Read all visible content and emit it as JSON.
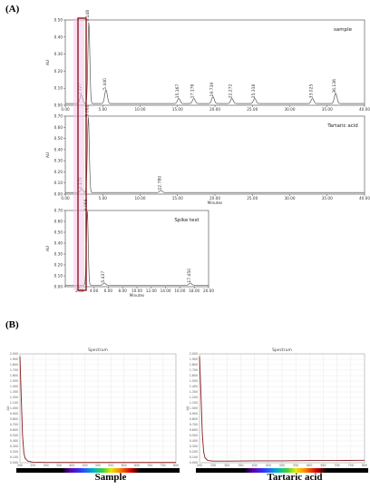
{
  "panel_a_label": "(A)",
  "panel_b_label": "(B)",
  "captions": {
    "left": "Sample",
    "right": "Tartaric acid"
  },
  "spectra_title": "Spectrum",
  "colors": {
    "trace": "#5a5a5a",
    "highlight_box": "#8b1a1a",
    "pink_band": "#f4c6ea",
    "spectrum_line": "#8b1a1a"
  },
  "chart_data": [
    {
      "type": "line",
      "title": "sample",
      "xlabel": "",
      "ylabel": "AU",
      "xlim": [
        0,
        40
      ],
      "ylim": [
        0,
        0.5
      ],
      "x_ticks": [
        "0.00",
        "5.00",
        "10.00",
        "15.00",
        "20.00",
        "25.00",
        "30.00",
        "35.00",
        "40.00"
      ],
      "y_ticks": [
        "0.00",
        "0.10",
        "0.20",
        "0.30",
        "0.40",
        "0.50"
      ],
      "peaks": [
        {
          "label": "2.127",
          "x": 2.13,
          "y": 0.05
        },
        {
          "label": "3.148",
          "x": 3.15,
          "y": 0.48
        },
        {
          "label": "5.440",
          "x": 5.44,
          "y": 0.08
        },
        {
          "label": "15.167",
          "x": 15.17,
          "y": 0.03
        },
        {
          "label": "17.176",
          "x": 17.18,
          "y": 0.03
        },
        {
          "label": "19.739",
          "x": 19.74,
          "y": 0.04
        },
        {
          "label": "22.272",
          "x": 22.27,
          "y": 0.03
        },
        {
          "label": "25.316",
          "x": 25.32,
          "y": 0.03
        },
        {
          "label": "33.025",
          "x": 33.03,
          "y": 0.03
        },
        {
          "label": "36.136",
          "x": 36.14,
          "y": 0.06
        }
      ]
    },
    {
      "type": "line",
      "title": "Tartaric acid",
      "xlabel": "Minutes",
      "ylabel": "AU",
      "xlim": [
        0,
        40
      ],
      "ylim": [
        0,
        0.7
      ],
      "x_ticks": [
        "0.00",
        "5.00",
        "10.00",
        "15.00",
        "20.00",
        "25.00",
        "30.00",
        "35.00",
        "40.00"
      ],
      "y_ticks": [
        "0.00",
        "0.10",
        "0.20",
        "0.30",
        "0.40",
        "0.50",
        "0.60",
        "0.70"
      ],
      "peaks": [
        {
          "label": "2.170",
          "x": 2.17,
          "y": 0.03
        },
        {
          "label": "3.082",
          "x": 3.08,
          "y": 0.68
        },
        {
          "label": "12.780",
          "x": 12.78,
          "y": 0.02
        }
      ]
    },
    {
      "type": "line",
      "title": "Spike test",
      "xlabel": "Minutes",
      "ylabel": "AU",
      "xlim": [
        0,
        20
      ],
      "ylim": [
        0,
        0.7
      ],
      "x_ticks": [
        "2.00",
        "4.00",
        "6.00",
        "8.00",
        "10.00",
        "12.00",
        "14.00",
        "16.00",
        "18.00",
        "20.00"
      ],
      "y_ticks": [
        "0.00",
        "0.10",
        "0.20",
        "0.30",
        "0.40",
        "0.50",
        "0.60",
        "0.70"
      ],
      "peaks": [
        {
          "label": "3.068",
          "x": 3.07,
          "y": 0.68
        },
        {
          "label": "5.437",
          "x": 5.44,
          "y": 0.02
        },
        {
          "label": "17.450",
          "x": 17.45,
          "y": 0.02
        }
      ]
    },
    {
      "type": "line",
      "title": "Spectrum",
      "xlabel": "nm",
      "ylabel": "AU",
      "xlim": [
        200,
        800
      ],
      "ylim": [
        0,
        2.0
      ],
      "y_ticks": [
        "0.000",
        "0.100",
        "0.200",
        "0.300",
        "0.400",
        "0.500",
        "0.600",
        "0.700",
        "0.800",
        "0.900",
        "1.000",
        "1.100",
        "1.200",
        "1.300",
        "1.400",
        "1.500",
        "1.600",
        "1.700",
        "1.800",
        "1.900",
        "2.000"
      ],
      "x_ticks": [
        "200",
        "250",
        "300",
        "350",
        "400",
        "450",
        "500",
        "550",
        "600",
        "650",
        "700",
        "750",
        "800"
      ],
      "series": [
        {
          "name": "Sample",
          "x": [
            200,
            205,
            210,
            215,
            220,
            230,
            250,
            300,
            400,
            500,
            600,
            700,
            800
          ],
          "y": [
            1.95,
            1.2,
            0.5,
            0.18,
            0.08,
            0.03,
            0.01,
            0.005,
            0.004,
            0.004,
            0.004,
            0.004,
            0.004
          ]
        }
      ]
    },
    {
      "type": "line",
      "title": "Spectrum",
      "xlabel": "nm",
      "ylabel": "AU",
      "xlim": [
        200,
        800
      ],
      "ylim": [
        0,
        2.0
      ],
      "y_ticks": [
        "0.000",
        "0.100",
        "0.200",
        "0.300",
        "0.400",
        "0.500",
        "0.600",
        "0.700",
        "0.800",
        "0.900",
        "1.000",
        "1.100",
        "1.200",
        "1.300",
        "1.400",
        "1.500",
        "1.600",
        "1.700",
        "1.800",
        "1.900",
        "2.000"
      ],
      "x_ticks": [
        "200",
        "250",
        "300",
        "350",
        "400",
        "450",
        "500",
        "550",
        "600",
        "650",
        "700",
        "750",
        "800"
      ],
      "series": [
        {
          "name": "Tartaric acid",
          "x": [
            200,
            205,
            210,
            215,
            220,
            230,
            250,
            300,
            400,
            500,
            600,
            700,
            800
          ],
          "y": [
            1.95,
            1.3,
            0.55,
            0.2,
            0.09,
            0.04,
            0.03,
            0.03,
            0.035,
            0.035,
            0.04,
            0.04,
            0.045
          ]
        }
      ]
    }
  ]
}
